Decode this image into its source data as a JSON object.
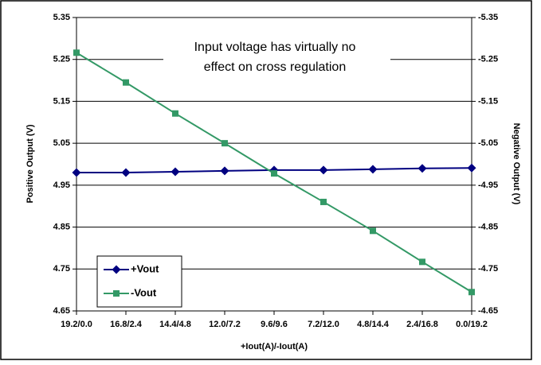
{
  "chart_data": {
    "type": "line",
    "annotation": [
      "Input voltage has virtually no",
      "effect on cross regulation"
    ],
    "x_label": "+Iout(A)/-Iout(A)",
    "y_label": "Positive Output (V)",
    "y2_label": "Negative Output (V)",
    "categories": [
      "19.2/0.0",
      "16.8/2.4",
      "14.4/4.8",
      "12.0/7.2",
      "9.6/9.6",
      "7.2/12.0",
      "4.8/14.4",
      "2.4/16.8",
      "0.0/19.2"
    ],
    "series": [
      {
        "name": "+Vout",
        "color": "#000080",
        "marker": "diamond",
        "values": [
          4.98,
          4.98,
          4.982,
          4.984,
          4.986,
          4.986,
          4.988,
          4.99,
          4.991
        ]
      },
      {
        "name": "-Vout",
        "color": "#339966",
        "marker": "square",
        "axis": "y2",
        "values": [
          -5.266,
          -5.195,
          -5.121,
          -5.05,
          -4.978,
          -4.91,
          -4.841,
          -4.767,
          -4.695
        ]
      }
    ],
    "ylim": [
      4.65,
      5.35
    ],
    "yticks": [
      4.65,
      4.75,
      4.85,
      4.95,
      5.05,
      5.15,
      5.25,
      5.35
    ],
    "y2lim": [
      -4.65,
      -5.35
    ],
    "y2ticks": [
      -4.65,
      -4.75,
      -4.85,
      -4.95,
      -5.05,
      -5.15,
      -5.25,
      -5.35
    ],
    "grid": true,
    "legend": "bottom-left"
  }
}
